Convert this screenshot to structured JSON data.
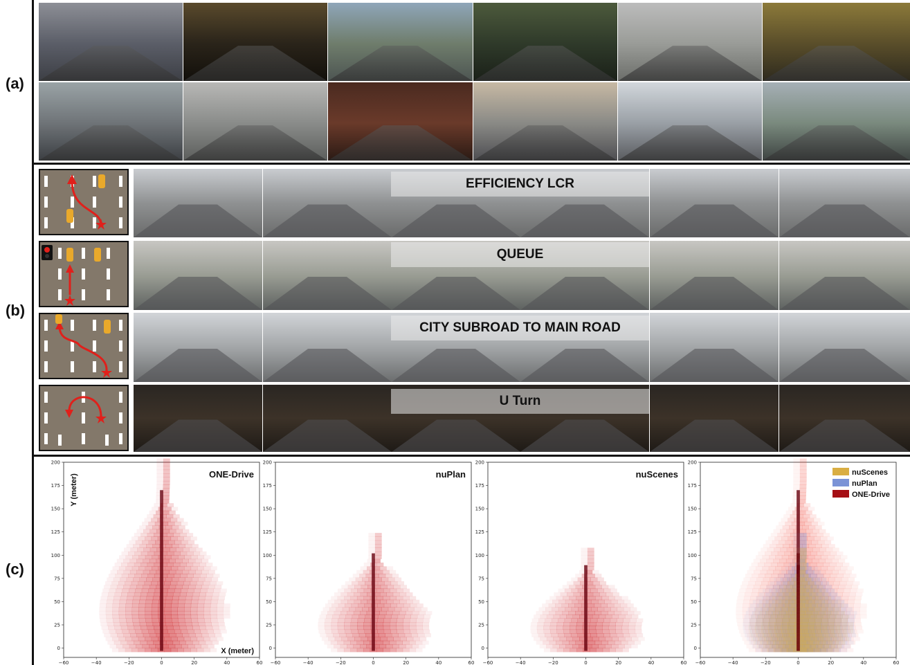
{
  "panels": {
    "a": {
      "label": "(a)"
    },
    "b": {
      "label": "(b)"
    },
    "c": {
      "label": "(c)"
    }
  },
  "scenario_rows": [
    {
      "title": "EFFICIENCY LCR",
      "diagram": "lane-change-right-icon"
    },
    {
      "title": "QUEUE",
      "diagram": "traffic-light-queue-icon"
    },
    {
      "title": "CITY SUBROAD TO MAIN ROAD",
      "diagram": "merge-to-main-road-icon"
    },
    {
      "title": "U Turn",
      "diagram": "u-turn-icon"
    }
  ],
  "colors": {
    "one_drive": "#a50f15",
    "nuplan": "#7b93d6",
    "nuscenes": "#d9ae43",
    "diagram_road": "#83786a",
    "marker": "#e0201b"
  },
  "chart_data": [
    {
      "type": "heatmap",
      "title": "ONE-Drive",
      "xlabel": "X (meter)",
      "ylabel": "Y (meter)",
      "xlim": [
        -60,
        60
      ],
      "ylim": [
        -10,
        200
      ],
      "xticks": [
        "−60",
        "−40",
        "−20",
        "0",
        "20",
        "40",
        "60"
      ],
      "yticks": [
        "0",
        "25",
        "50",
        "75",
        "100",
        "125",
        "150",
        "175",
        "200"
      ],
      "max_forward_m": 200,
      "max_lateral_m": 45
    },
    {
      "type": "heatmap",
      "title": "nuPlan",
      "xlim": [
        -60,
        60
      ],
      "ylim": [
        -10,
        200
      ],
      "xticks": [
        "−60",
        "−40",
        "−20",
        "0",
        "20",
        "40",
        "60"
      ],
      "yticks": [
        "0",
        "25",
        "50",
        "75",
        "100",
        "125",
        "150",
        "175",
        "200"
      ],
      "max_forward_m": 120,
      "max_lateral_m": 40
    },
    {
      "type": "heatmap",
      "title": "nuScenes",
      "xlim": [
        -60,
        60
      ],
      "ylim": [
        -10,
        200
      ],
      "xticks": [
        "−60",
        "−40",
        "−20",
        "0",
        "20",
        "40",
        "60"
      ],
      "yticks": [
        "0",
        "25",
        "50",
        "75",
        "100",
        "125",
        "150",
        "175",
        "200"
      ],
      "max_forward_m": 105,
      "max_lateral_m": 40
    },
    {
      "type": "heatmap",
      "xlim": [
        -60,
        60
      ],
      "ylim": [
        -10,
        200
      ],
      "xticks": [
        "−60",
        "−40",
        "−20",
        "0",
        "20",
        "40",
        "60"
      ],
      "yticks": [
        "0",
        "25",
        "50",
        "75",
        "100",
        "125",
        "150",
        "175",
        "200"
      ],
      "legend_position": "top-right",
      "series": [
        {
          "name": "nuScenes",
          "color": "#d9ae43"
        },
        {
          "name": "nuPlan",
          "color": "#7b93d6"
        },
        {
          "name": "ONE-Drive",
          "color": "#a50f15"
        }
      ]
    }
  ]
}
